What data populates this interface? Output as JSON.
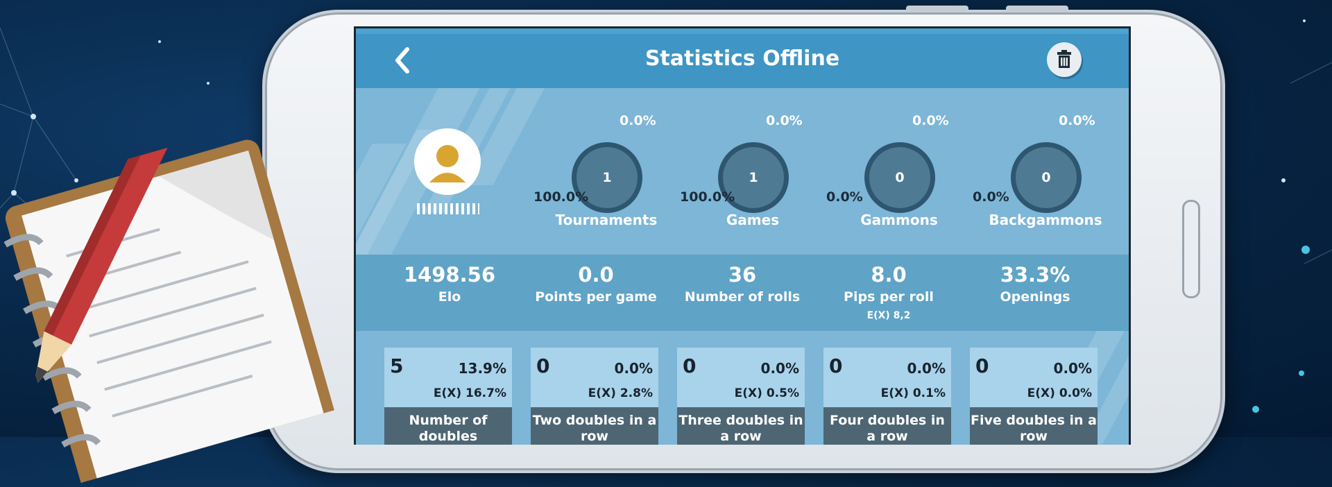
{
  "header": {
    "title": "Statistics Offline"
  },
  "profile": {
    "name_mask": "IIIIIIIIIIII"
  },
  "rings": [
    {
      "value": "1",
      "pct_top": "0.0%",
      "pct_bottom": "100.0%",
      "label": "Tournaments"
    },
    {
      "value": "1",
      "pct_top": "0.0%",
      "pct_bottom": "100.0%",
      "label": "Games"
    },
    {
      "value": "0",
      "pct_top": "0.0%",
      "pct_bottom": "0.0%",
      "label": "Gammons"
    },
    {
      "value": "0",
      "pct_top": "0.0%",
      "pct_bottom": "0.0%",
      "label": "Backgammons"
    }
  ],
  "stats": [
    {
      "value": "1498.56",
      "label": "Elo",
      "sub": ""
    },
    {
      "value": "0.0",
      "label": "Points per game",
      "sub": ""
    },
    {
      "value": "36",
      "label": "Number of rolls",
      "sub": ""
    },
    {
      "value": "8.0",
      "label": "Pips per roll",
      "sub": "E(X) 8,2"
    },
    {
      "value": "33.3%",
      "label": "Openings",
      "sub": ""
    }
  ],
  "cards": [
    {
      "count": "5",
      "pct": "13.9%",
      "expected": "E(X) 16.7%",
      "label": "Number of doubles"
    },
    {
      "count": "0",
      "pct": "0.0%",
      "expected": "E(X) 2.8%",
      "label": "Two doubles in a row"
    },
    {
      "count": "0",
      "pct": "0.0%",
      "expected": "E(X) 0.5%",
      "label": "Three doubles in a row"
    },
    {
      "count": "0",
      "pct": "0.0%",
      "expected": "E(X) 0.1%",
      "label": "Four doubles in a row"
    },
    {
      "count": "0",
      "pct": "0.0%",
      "expected": "E(X) 0.0%",
      "label": "Five doubles in a row"
    }
  ],
  "colors": {
    "header": "#3f95c4",
    "screen": "#7db6d7",
    "ring": "#2e5670",
    "card_label": "#4e6573"
  }
}
